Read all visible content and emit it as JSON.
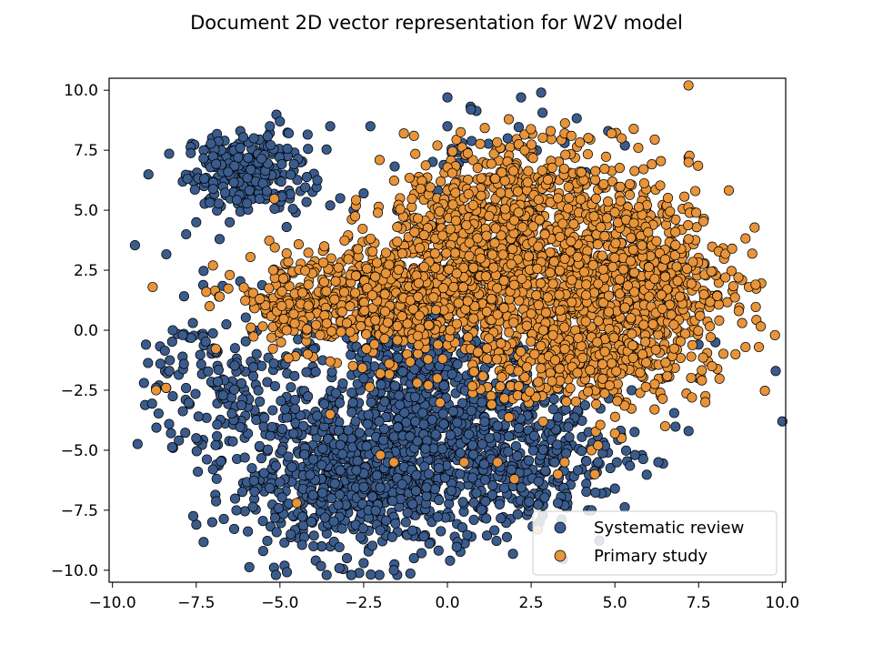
{
  "chart_data": {
    "type": "scatter",
    "title": "Document 2D vector representation for W2V model",
    "xlabel": "",
    "ylabel": "",
    "xlim": [
      -10.1,
      10.1
    ],
    "ylim": [
      -10.5,
      10.5
    ],
    "grid": false,
    "legend_position": "lower-right",
    "x_ticks": [
      -10.0,
      -7.5,
      -5.0,
      -2.5,
      0.0,
      2.5,
      5.0,
      7.5,
      10.0
    ],
    "y_ticks": [
      -10.0,
      -7.5,
      -5.0,
      -2.5,
      0.0,
      2.5,
      5.0,
      7.5,
      10.0
    ],
    "x_tick_labels": [
      "−10.0",
      "−7.5",
      "−5.0",
      "−2.5",
      "0.0",
      "2.5",
      "5.0",
      "7.5",
      "10.0"
    ],
    "y_tick_labels": [
      "−10.0",
      "−7.5",
      "−5.0",
      "−2.5",
      "0.0",
      "2.5",
      "5.0",
      "7.5",
      "10.0"
    ],
    "series": [
      {
        "name": "Systematic review",
        "color": "#3a5b8c",
        "edge_color": "#000000",
        "clusters": [
          {
            "center": [
              -6.0,
              6.6
            ],
            "spread": [
              0.9,
              0.8
            ],
            "count": 260
          },
          {
            "center": [
              -3.0,
              -6.0
            ],
            "spread": [
              1.8,
              1.6
            ],
            "count": 700
          },
          {
            "center": [
              0.0,
              -4.2
            ],
            "spread": [
              1.9,
              2.2
            ],
            "count": 600
          },
          {
            "center": [
              2.5,
              -5.2
            ],
            "spread": [
              1.6,
              1.4
            ],
            "count": 260
          },
          {
            "center": [
              -1.2,
              -1.0
            ],
            "spread": [
              1.2,
              1.2
            ],
            "count": 220
          },
          {
            "center": [
              -6.5,
              -2.2
            ],
            "spread": [
              1.2,
              1.8
            ],
            "count": 160
          },
          {
            "center": [
              1.0,
              7.5
            ],
            "spread": [
              1.5,
              0.8
            ],
            "count": 25
          }
        ],
        "points": [
          [
            -9.0,
            -0.6
          ],
          [
            -8.2,
            0.0
          ],
          [
            -7.9,
            -0.2
          ],
          [
            -7.6,
            0.3
          ],
          [
            -8.3,
            -1.7
          ],
          [
            -8.7,
            -2.4
          ],
          [
            -7.5,
            -4.5
          ],
          [
            -7.0,
            -5.8
          ],
          [
            -6.3,
            -7.5
          ],
          [
            -4.0,
            -9.0
          ],
          [
            -2.5,
            -9.7
          ],
          [
            -1.6,
            -10.0
          ],
          [
            -3.0,
            -9.5
          ],
          [
            -1.0,
            -9.5
          ],
          [
            0.0,
            9.7
          ],
          [
            0.7,
            9.2
          ],
          [
            2.2,
            9.7
          ],
          [
            2.8,
            9.9
          ],
          [
            0.0,
            8.5
          ],
          [
            1.8,
            8.0
          ],
          [
            -3.5,
            8.5
          ],
          [
            -2.3,
            8.5
          ],
          [
            -5.0,
            8.7
          ],
          [
            -5.3,
            8.5
          ],
          [
            -1.5,
            5.0
          ],
          [
            -2.5,
            5.7
          ],
          [
            -3.5,
            5.2
          ],
          [
            -2.8,
            5.0
          ],
          [
            -3.2,
            5.5
          ],
          [
            -7.8,
            4.0
          ],
          [
            -7.5,
            4.5
          ],
          [
            -6.5,
            4.5
          ],
          [
            -6.8,
            3.8
          ],
          [
            -4.8,
            4.3
          ],
          [
            9.8,
            -1.7
          ],
          [
            10.0,
            -3.8
          ],
          [
            7.5,
            -0.6
          ],
          [
            8.0,
            -0.5
          ],
          [
            6.2,
            -0.8
          ],
          [
            5.5,
            -2.5
          ],
          [
            3.5,
            -7.3
          ],
          [
            3.3,
            -7.2
          ],
          [
            4.2,
            -7.5
          ],
          [
            4.3,
            -7.5
          ],
          [
            5.0,
            -6.6
          ],
          [
            5.6,
            -5.2
          ],
          [
            7.2,
            -4.2
          ],
          [
            7.5,
            -2.0
          ],
          [
            6.3,
            -5.5
          ],
          [
            4.5,
            -5.5
          ],
          [
            7.2,
            7.2
          ],
          [
            4.8,
            8.3
          ],
          [
            5.3,
            7.7
          ],
          [
            3.5,
            7.8
          ],
          [
            -0.5,
            -1.0
          ],
          [
            0.0,
            0.0
          ],
          [
            -0.8,
            0.8
          ],
          [
            -1.5,
            -0.5
          ],
          [
            -2.5,
            -2.0
          ],
          [
            -4.0,
            -0.8
          ]
        ]
      },
      {
        "name": "Primary study",
        "color": "#e8943a",
        "edge_color": "#000000",
        "clusters": [
          {
            "center": [
              2.8,
              2.5
            ],
            "spread": [
              2.3,
              2.0
            ],
            "count": 1050
          },
          {
            "center": [
              5.8,
              1.8
            ],
            "spread": [
              1.3,
              2.0
            ],
            "count": 450
          },
          {
            "center": [
              -2.0,
              1.2
            ],
            "spread": [
              1.6,
              1.2
            ],
            "count": 420
          },
          {
            "center": [
              0.8,
              4.0
            ],
            "spread": [
              1.2,
              1.6
            ],
            "count": 300
          },
          {
            "center": [
              4.0,
              -1.5
            ],
            "spread": [
              1.6,
              0.9
            ],
            "count": 260
          },
          {
            "center": [
              2.5,
              6.5
            ],
            "spread": [
              1.3,
              0.9
            ],
            "count": 150
          },
          {
            "center": [
              -4.5,
              1.0
            ],
            "spread": [
              1.0,
              0.9
            ],
            "count": 120
          }
        ],
        "points": [
          [
            -8.8,
            1.8
          ],
          [
            -8.7,
            -2.5
          ],
          [
            -8.4,
            -2.4
          ],
          [
            -7.2,
            1.6
          ],
          [
            -7.0,
            2.7
          ],
          [
            -6.5,
            2.3
          ],
          [
            -6.8,
            1.4
          ],
          [
            -7.1,
            1.0
          ],
          [
            -1.3,
            8.2
          ],
          [
            -1.0,
            8.1
          ],
          [
            -0.3,
            7.7
          ],
          [
            3.5,
            8.2
          ],
          [
            3.7,
            8.1
          ],
          [
            4.9,
            8.2
          ],
          [
            5.2,
            8.0
          ],
          [
            5.7,
            7.6
          ],
          [
            7.2,
            7.0
          ],
          [
            7.4,
            5.8
          ],
          [
            7.2,
            3.8
          ],
          [
            8.5,
            3.4
          ],
          [
            8.3,
            2.2
          ],
          [
            9.0,
            1.8
          ],
          [
            9.2,
            1.9
          ],
          [
            8.7,
            0.8
          ],
          [
            8.8,
            0.3
          ],
          [
            9.3,
            -0.7
          ],
          [
            8.9,
            -0.7
          ],
          [
            8.6,
            -1.0
          ],
          [
            7.9,
            -1.5
          ],
          [
            7.7,
            -3.0
          ],
          [
            7.3,
            -2.8
          ],
          [
            6.5,
            -4.0
          ],
          [
            5.2,
            -4.5
          ],
          [
            5.0,
            -4.3
          ],
          [
            4.3,
            -5.0
          ],
          [
            4.5,
            -4.8
          ],
          [
            3.5,
            -5.5
          ],
          [
            3.3,
            -6.0
          ],
          [
            4.4,
            -6.0
          ],
          [
            2.0,
            -6.2
          ],
          [
            1.5,
            -5.5
          ],
          [
            2.7,
            -8.3
          ],
          [
            -4.5,
            -7.2
          ],
          [
            -3.5,
            -3.5
          ],
          [
            -2.0,
            -5.2
          ],
          [
            -1.6,
            -5.5
          ],
          [
            0.5,
            -5.5
          ],
          [
            -0.3,
            -2.0
          ],
          [
            -0.9,
            -2.2
          ],
          [
            -2.0,
            -1.8
          ],
          [
            -3.5,
            -1.3
          ],
          [
            -4.8,
            3.2
          ],
          [
            -5.2,
            2.5
          ],
          [
            -5.6,
            1.3
          ],
          [
            -4.8,
            0.0
          ],
          [
            -3.8,
            -0.2
          ],
          [
            -3.0,
            0.3
          ],
          [
            -0.8,
            5.9
          ],
          [
            -0.2,
            6.2
          ],
          [
            -1.5,
            4.3
          ]
        ]
      }
    ]
  }
}
